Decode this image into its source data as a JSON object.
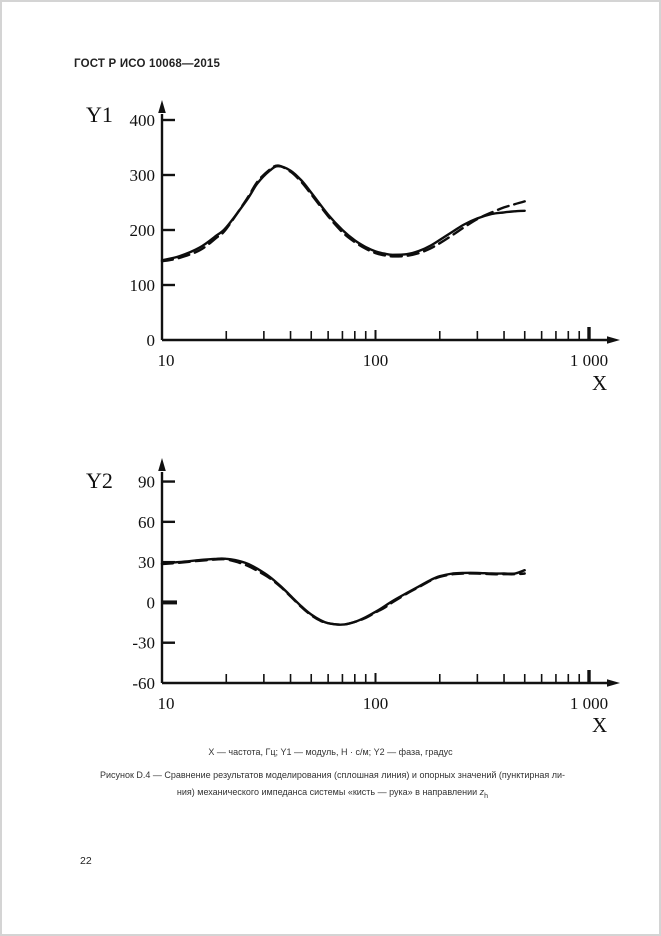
{
  "page": {
    "header": "ГОСТ Р ИСО 10068—2015",
    "page_number": "22",
    "caption_key": "X — частота, Гц; Y1 — модуль, Н · с/м; Y2 — фаза, градус",
    "figure_caption_line1": "Рисунок D.4 — Сравнение результатов моделирования (сплошная линия) и опорных значений (пунктирная ли-",
    "figure_caption_line2": "ния) механического импеданса системы «кисть — рука» в направлении ",
    "figure_caption_var": "z",
    "figure_caption_var_sub": "h"
  },
  "chart_data": [
    {
      "type": "line",
      "title": "",
      "ylabel": "Y1",
      "xlabel": "X",
      "x_scale": "log",
      "grid": false,
      "legend": "none",
      "xlim": [
        10,
        1000
      ],
      "ylim": [
        0,
        400
      ],
      "x_ticks_major": [
        {
          "v": 10,
          "label": "10",
          "bold": false
        },
        {
          "v": 100,
          "label": "100",
          "bold": false
        },
        {
          "v": 1000,
          "label": "1 000",
          "bold": true
        }
      ],
      "x_ticks_minor": [
        20,
        30,
        40,
        50,
        60,
        70,
        80,
        90,
        200,
        300,
        400,
        500,
        600,
        700,
        800,
        900
      ],
      "y_ticks": [
        {
          "v": 0,
          "label": "0",
          "bold": false
        },
        {
          "v": 100,
          "label": "100",
          "bold": false
        },
        {
          "v": 200,
          "label": "200",
          "bold": false
        },
        {
          "v": 300,
          "label": "300",
          "bold": false
        },
        {
          "v": 400,
          "label": "400",
          "bold": false
        }
      ],
      "series": [
        {
          "name": "опорные значения (пунктирная линия)",
          "style": "dashed",
          "points": [
            [
              10,
              143
            ],
            [
              12,
              149
            ],
            [
              15,
              163
            ],
            [
              18,
              186
            ],
            [
              20,
              202
            ],
            [
              25,
              257
            ],
            [
              28,
              288
            ],
            [
              32,
              310
            ],
            [
              35,
              317
            ],
            [
              40,
              306
            ],
            [
              45,
              287
            ],
            [
              50,
              265
            ],
            [
              60,
              225
            ],
            [
              70,
              196
            ],
            [
              80,
              178
            ],
            [
              90,
              166
            ],
            [
              100,
              158
            ],
            [
              110,
              154
            ],
            [
              120,
              152
            ],
            [
              140,
              153
            ],
            [
              160,
              158
            ],
            [
              180,
              166
            ],
            [
              200,
              176
            ],
            [
              230,
              191
            ],
            [
              260,
              205
            ],
            [
              300,
              220
            ],
            [
              350,
              232
            ],
            [
              400,
              241
            ],
            [
              450,
              247
            ],
            [
              500,
              252
            ]
          ]
        },
        {
          "name": "моделирование (сплошная линия)",
          "style": "solid",
          "points": [
            [
              10,
              145
            ],
            [
              12,
              152
            ],
            [
              15,
              168
            ],
            [
              18,
              190
            ],
            [
              20,
              205
            ],
            [
              25,
              255
            ],
            [
              28,
              285
            ],
            [
              32,
              308
            ],
            [
              35,
              316
            ],
            [
              40,
              308
            ],
            [
              45,
              290
            ],
            [
              50,
              268
            ],
            [
              60,
              228
            ],
            [
              70,
              200
            ],
            [
              80,
              181
            ],
            [
              90,
              169
            ],
            [
              100,
              161
            ],
            [
              110,
              157
            ],
            [
              120,
              155
            ],
            [
              140,
              156
            ],
            [
              160,
              162
            ],
            [
              180,
              171
            ],
            [
              200,
              182
            ],
            [
              230,
              197
            ],
            [
              260,
              210
            ],
            [
              300,
              221
            ],
            [
              350,
              229
            ],
            [
              400,
              232
            ],
            [
              450,
              234
            ],
            [
              500,
              235
            ]
          ]
        }
      ]
    },
    {
      "type": "line",
      "title": "",
      "ylabel": "Y2",
      "xlabel": "X",
      "x_scale": "log",
      "grid": false,
      "legend": "none",
      "xlim": [
        10,
        1000
      ],
      "ylim": [
        -60,
        90
      ],
      "x_ticks_major": [
        {
          "v": 10,
          "label": "10",
          "bold": false
        },
        {
          "v": 100,
          "label": "100",
          "bold": false
        },
        {
          "v": 1000,
          "label": "1 000",
          "bold": true
        }
      ],
      "x_ticks_minor": [
        20,
        30,
        40,
        50,
        60,
        70,
        80,
        90,
        200,
        300,
        400,
        500,
        600,
        700,
        800,
        900
      ],
      "y_ticks": [
        {
          "v": -60,
          "label": "-60",
          "bold": false
        },
        {
          "v": -30,
          "label": "-30",
          "bold": false
        },
        {
          "v": 0,
          "label": "0",
          "bold": true
        },
        {
          "v": 30,
          "label": "30",
          "bold": false
        },
        {
          "v": 60,
          "label": "60",
          "bold": false
        },
        {
          "v": 90,
          "label": "90",
          "bold": false
        }
      ],
      "series": [
        {
          "name": "опорные значения (пунктирная линия)",
          "style": "dashed",
          "points": [
            [
              10,
              28.5
            ],
            [
              12,
              29.5
            ],
            [
              15,
              31
            ],
            [
              18,
              32
            ],
            [
              20,
              32
            ],
            [
              22,
              30.5
            ],
            [
              25,
              27.5
            ],
            [
              28,
              23.5
            ],
            [
              32,
              18
            ],
            [
              36,
              11.5
            ],
            [
              40,
              4.5
            ],
            [
              45,
              -3.5
            ],
            [
              50,
              -9.5
            ],
            [
              55,
              -13.5
            ],
            [
              60,
              -15.5
            ],
            [
              70,
              -16.5
            ],
            [
              80,
              -14.5
            ],
            [
              90,
              -11.5
            ],
            [
              100,
              -7.5
            ],
            [
              110,
              -4
            ],
            [
              120,
              0
            ],
            [
              140,
              6.5
            ],
            [
              160,
              11.5
            ],
            [
              180,
              16
            ],
            [
              200,
              19
            ],
            [
              230,
              21
            ],
            [
              260,
              21.5
            ],
            [
              300,
              21.5
            ],
            [
              350,
              21
            ],
            [
              400,
              21
            ],
            [
              450,
              21
            ],
            [
              500,
              21.5
            ]
          ]
        },
        {
          "name": "моделирование (сплошная линия)",
          "style": "solid",
          "points": [
            [
              10,
              29
            ],
            [
              12,
              30
            ],
            [
              15,
              31.5
            ],
            [
              18,
              32.5
            ],
            [
              20,
              32.5
            ],
            [
              22,
              31.5
            ],
            [
              25,
              29
            ],
            [
              28,
              25
            ],
            [
              32,
              19
            ],
            [
              36,
              12
            ],
            [
              40,
              5
            ],
            [
              45,
              -3
            ],
            [
              50,
              -9
            ],
            [
              55,
              -13
            ],
            [
              60,
              -15.5
            ],
            [
              70,
              -16.5
            ],
            [
              80,
              -14.5
            ],
            [
              90,
              -11
            ],
            [
              100,
              -7
            ],
            [
              110,
              -3
            ],
            [
              120,
              1
            ],
            [
              140,
              7
            ],
            [
              160,
              12
            ],
            [
              180,
              16.5
            ],
            [
              200,
              19.5
            ],
            [
              230,
              21.5
            ],
            [
              260,
              22
            ],
            [
              300,
              22
            ],
            [
              350,
              21.5
            ],
            [
              400,
              21.5
            ],
            [
              450,
              21.5
            ],
            [
              500,
              24
            ]
          ]
        }
      ]
    }
  ]
}
